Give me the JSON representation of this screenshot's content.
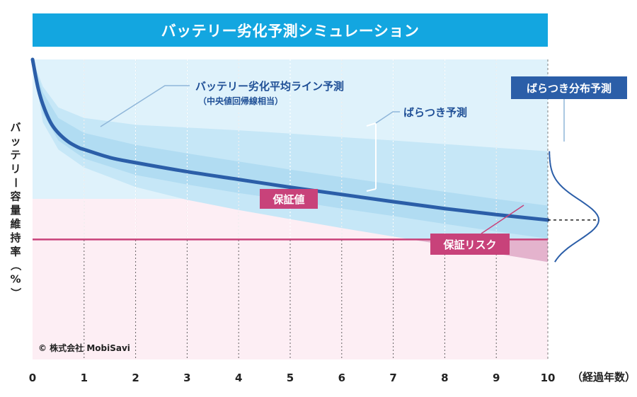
{
  "title": "バッテリー劣化予測シミュレーション",
  "colors": {
    "title_bg": "#13a6e0",
    "band_bg": "#dff2fb",
    "band_outer": "#c6e7f7",
    "band_inner": "#aad8f0",
    "median_line": "#2b5ea8",
    "guarantee_line": "#c8427a",
    "guarantee_bg": "#fdeef4",
    "risk_fill": "#e9a9c6",
    "callout_blue": "#2b5ea8",
    "callout_pink": "#c8427a"
  },
  "chart_data": {
    "type": "line",
    "xlabel": "（経過年数）",
    "ylabel": "バッテリー容量維持率（%）",
    "x_ticks": [
      "0",
      "1",
      "2",
      "3",
      "4",
      "5",
      "6",
      "7",
      "8",
      "9",
      "10"
    ],
    "xlim": [
      0,
      10
    ],
    "ylim": [
      0,
      100
    ],
    "series": [
      {
        "name": "バッテリー劣化平均ライン予測",
        "x": [
          0,
          0.1,
          0.2,
          0.35,
          0.5,
          0.7,
          0.9,
          1,
          1.5,
          2,
          3,
          4,
          5,
          6,
          7,
          8,
          9,
          10
        ],
        "y": [
          100,
          91,
          85,
          79,
          75.5,
          72.5,
          70.6,
          70,
          67.3,
          65.6,
          62.6,
          60,
          57.4,
          55,
          52.6,
          50.3,
          48.3,
          46.5
        ]
      }
    ],
    "band": {
      "name": "ばらつき予測",
      "x": [
        0,
        0.2,
        0.5,
        1,
        2,
        3,
        4,
        5,
        6,
        7,
        8,
        9,
        10
      ],
      "upper": [
        100,
        91,
        84,
        80.5,
        78.2,
        77.3,
        76.4,
        75.3,
        74.1,
        73,
        71.8,
        70.6,
        69.4
      ],
      "lower": [
        100,
        79,
        70,
        64,
        57.5,
        53.2,
        49.8,
        46.8,
        43.8,
        41,
        38.2,
        35.3,
        32.5
      ]
    },
    "inner_band": {
      "x": [
        0,
        0.2,
        0.5,
        1,
        2,
        3,
        4,
        5,
        6,
        7,
        8,
        9,
        10
      ],
      "upper": [
        100,
        89,
        80.5,
        75.5,
        71.5,
        68.7,
        66,
        63.3,
        60.8,
        58.3,
        55.9,
        53.5,
        51.3
      ],
      "lower": [
        100,
        82,
        73,
        67,
        61.5,
        58.3,
        55.5,
        53,
        50.3,
        47.8,
        45.2,
        42.7,
        40.3
      ]
    },
    "guarantee_value": 40
  },
  "labels": {
    "median_callout": "バッテリー劣化平均ライン予測",
    "median_callout_sub": "（中央値回帰線相当）",
    "spread_callout": "ばらつき予測",
    "distribution_badge": "ばらつき分布予測",
    "guarantee_badge": "保証値",
    "risk_badge": "保証リスク",
    "copyright": "© 株式会社 MobiSavi"
  }
}
